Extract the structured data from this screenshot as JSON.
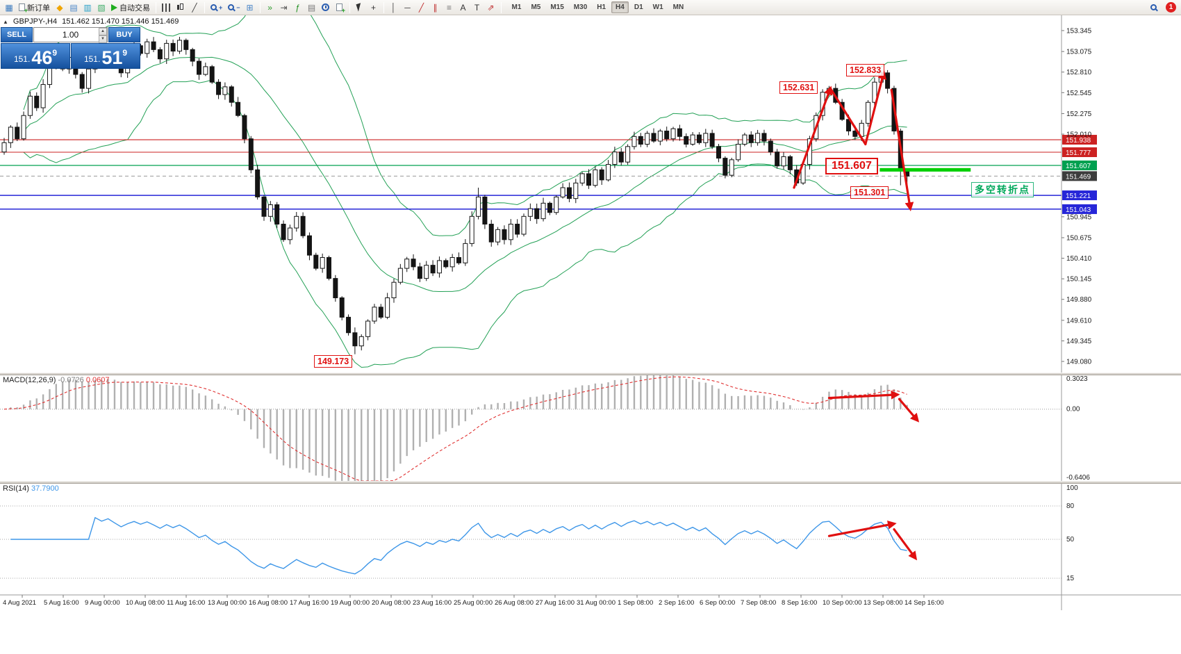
{
  "toolbar": {
    "new_order_label": "新订单",
    "auto_trading_label": "自动交易",
    "notification_count": "1",
    "active_timeframe": "H4",
    "timeframes": [
      "M1",
      "M5",
      "M15",
      "M30",
      "H1",
      "H4",
      "D1",
      "W1",
      "MN"
    ],
    "items": [
      {
        "name": "new-chart-button",
        "type": "glyph",
        "char": "▦",
        "color": "#3a7abf"
      },
      {
        "name": "new-order-button",
        "type": "labeled",
        "icon": "doc",
        "label": "新订单"
      },
      {
        "name": "mql5-community-button",
        "type": "glyph",
        "char": "◆",
        "color": "#f0a500"
      },
      {
        "name": "charts-window-button",
        "type": "glyph",
        "char": "▤",
        "color": "#4a86c8"
      },
      {
        "name": "data-window-button",
        "type": "glyph",
        "char": "▥",
        "color": "#27a0c8"
      },
      {
        "name": "strategy-tester-button",
        "type": "glyph",
        "char": "▧",
        "color": "#3fae6a"
      },
      {
        "name": "auto-trading-button",
        "type": "labeled",
        "icon": "play",
        "label": "自动交易"
      },
      {
        "type": "divider"
      },
      {
        "name": "bar-chart-type-button",
        "type": "css",
        "cls": "i-bars"
      },
      {
        "name": "candlestick-type-button",
        "type": "css",
        "cls": "i-candles"
      },
      {
        "name": "line-chart-type-button",
        "type": "glyph",
        "char": "╱",
        "color": "#444444"
      },
      {
        "type": "divider"
      },
      {
        "name": "zoom-in-button",
        "type": "zoom",
        "sign": "+"
      },
      {
        "name": "zoom-out-button",
        "type": "zoom",
        "sign": "−"
      },
      {
        "name": "tile-windows-button",
        "type": "glyph",
        "char": "⊞",
        "color": "#4a86c8"
      },
      {
        "type": "divider"
      },
      {
        "name": "auto-scroll-button",
        "type": "glyph",
        "char": "»",
        "color": "#2c9c2c"
      },
      {
        "name": "chart-shift-button",
        "type": "glyph",
        "char": "⇥",
        "color": "#555555"
      },
      {
        "name": "indicators-button",
        "type": "glyph",
        "char": "ƒ",
        "color": "#1f8f1f"
      },
      {
        "name": "periods-button",
        "type": "glyph",
        "char": "▤",
        "color": "#777777"
      },
      {
        "name": "alarm-button",
        "type": "css",
        "cls": "i-clock"
      },
      {
        "name": "news-button",
        "type": "css",
        "cls": "i-doc"
      },
      {
        "type": "divider"
      },
      {
        "name": "cursor-button",
        "type": "css",
        "cls": "i-cursor"
      },
      {
        "name": "crosshair-button",
        "type": "glyph",
        "char": "+",
        "color": "#333333"
      },
      {
        "type": "divider"
      },
      {
        "name": "vertical-line-button",
        "type": "glyph",
        "char": "│",
        "color": "#444444"
      },
      {
        "name": "horizontal-line-button",
        "type": "glyph",
        "char": "─",
        "color": "#444444"
      },
      {
        "name": "trendline-button",
        "type": "glyph",
        "char": "╱",
        "color": "#c03030"
      },
      {
        "name": "channel-button",
        "type": "glyph",
        "char": "∥",
        "color": "#c03030"
      },
      {
        "name": "fibonacci-button",
        "type": "glyph",
        "char": "≡",
        "color": "#777777"
      },
      {
        "name": "text-button",
        "type": "glyph",
        "char": "A",
        "color": "#333333"
      },
      {
        "name": "label-button",
        "type": "glyph",
        "char": "T",
        "color": "#333333"
      },
      {
        "name": "shapes-button",
        "type": "glyph",
        "char": "⇗",
        "color": "#c03030"
      },
      {
        "type": "divider"
      }
    ]
  },
  "chart": {
    "symbol_period": "GBPJPY-,H4",
    "ohlc_text": "151.462 151.470 151.446 151.469",
    "collapse_icon": "▲"
  },
  "trade_panel": {
    "sell_label": "SELL",
    "buy_label": "BUY",
    "volume": "1.00",
    "bid_prefix": "151.",
    "bid_big": "46",
    "bid_pip": "9",
    "ask_prefix": "151.",
    "ask_big": "51",
    "ask_pip": "9"
  },
  "macd": {
    "name": "MACD(12,26,9)",
    "value_main": "-0.0726",
    "value_signal": "0.0607"
  },
  "rsi": {
    "name": "RSI(14)",
    "value": "37.7900"
  },
  "annotations": {
    "peak1": "152.631",
    "peak2": "152.833",
    "support_label": "151.607",
    "low_label": "151.301",
    "bottom_low": "149.173",
    "turning_point": "多空转折点"
  },
  "chart_data": {
    "type": "candlestick+indicators",
    "symbol": "GBPJPY-",
    "timeframe": "H4",
    "closes": [
      151.9,
      152.1,
      151.95,
      152.25,
      152.5,
      152.35,
      152.65,
      152.9,
      153.05,
      152.85,
      153.0,
      152.78,
      152.6,
      152.85,
      153.05,
      152.92,
      153.1,
      152.95,
      152.8,
      153.0,
      153.15,
      153.05,
      153.2,
      153.1,
      152.98,
      153.18,
      153.08,
      153.22,
      153.1,
      152.95,
      152.78,
      152.88,
      152.68,
      152.52,
      152.62,
      152.42,
      152.25,
      151.95,
      151.55,
      151.2,
      150.95,
      151.1,
      150.85,
      150.65,
      150.8,
      150.95,
      150.7,
      150.45,
      150.28,
      150.42,
      150.15,
      149.9,
      149.65,
      149.45,
      149.28,
      149.4,
      149.6,
      149.78,
      149.65,
      149.9,
      150.1,
      150.28,
      150.4,
      150.3,
      150.15,
      150.32,
      150.22,
      150.38,
      150.3,
      150.42,
      150.35,
      150.6,
      150.95,
      151.2,
      150.85,
      150.62,
      150.78,
      150.65,
      150.85,
      150.72,
      150.95,
      151.05,
      150.92,
      151.12,
      151.0,
      151.2,
      151.32,
      151.18,
      151.38,
      151.5,
      151.35,
      151.55,
      151.42,
      151.62,
      151.78,
      151.65,
      151.85,
      151.98,
      151.88,
      152.02,
      151.92,
      152.05,
      151.95,
      152.08,
      151.98,
      151.88,
      152.0,
      151.9,
      152.02,
      151.85,
      151.7,
      151.48,
      151.68,
      151.88,
      152.0,
      151.9,
      152.02,
      151.92,
      151.78,
      151.6,
      151.72,
      151.55,
      151.38,
      151.62,
      151.95,
      152.25,
      152.55,
      152.6,
      152.42,
      152.2,
      152.05,
      151.98,
      152.15,
      152.42,
      152.68,
      152.8,
      152.6,
      152.05,
      151.55,
      151.469
    ],
    "wick_overrides": {
      "54": {
        "low": 149.173
      },
      "73": {
        "high": 151.32
      },
      "127": {
        "high": 152.631
      },
      "131": {
        "low": 151.935
      },
      "135": {
        "high": 152.833
      },
      "138": {
        "low": 151.35
      },
      "139": {
        "low": 151.301
      }
    },
    "bollinger": {
      "period": 20,
      "deviation": 2
    },
    "macd": {
      "fast": 12,
      "slow": 26,
      "signal": 9,
      "scale_max": 0.3023,
      "scale_min": -0.6406,
      "axis": [
        {
          "label": "0.3023",
          "v": 0.3023
        },
        {
          "label": "0.00",
          "v": 0
        },
        {
          "label": "-0.6406",
          "v": -0.6406
        }
      ]
    },
    "rsi": {
      "period": 14,
      "levels": [
        80,
        50,
        15
      ],
      "axis": [
        {
          "label": "100",
          "v": 100
        },
        {
          "label": "80",
          "v": 80
        },
        {
          "label": "50",
          "v": 50
        },
        {
          "label": "15",
          "v": 15
        }
      ]
    },
    "levels": [
      {
        "label": "151.938",
        "price": 151.938,
        "line_color": "#cc2222",
        "badge_bg": "#cc2222",
        "style": "solid",
        "width": 1.1
      },
      {
        "label": "151.777",
        "price": 151.777,
        "line_color": "#cc2222",
        "badge_bg": "#cc2222",
        "style": "solid",
        "width": 1.1
      },
      {
        "label": "151.607",
        "price": 151.607,
        "line_color": "#00a050",
        "badge_bg": "#00a050",
        "style": "solid",
        "width": 1.2
      },
      {
        "label": "151.469",
        "price": 151.469,
        "line_color": "#9a9a9a",
        "badge_bg": "#3c3c3c",
        "style": "dashed",
        "width": 1
      },
      {
        "label": "151.221",
        "price": 151.221,
        "line_color": "#2626d8",
        "badge_bg": "#2626d8",
        "style": "solid",
        "width": 1.5
      },
      {
        "label": "151.043",
        "price": 151.043,
        "line_color": "#2626d8",
        "badge_bg": "#2626d8",
        "style": "solid",
        "width": 1.5
      }
    ],
    "price_ticks": [
      "153.345",
      "153.075",
      "152.810",
      "152.545",
      "152.275",
      "152.010",
      "150.945",
      "150.675",
      "150.410",
      "150.145",
      "149.880",
      "149.610",
      "149.345",
      "149.080"
    ],
    "time_labels": [
      "4 Aug 2021",
      "5 Aug 16:00",
      "9 Aug 00:00",
      "10 Aug 08:00",
      "11 Aug 16:00",
      "13 Aug 00:00",
      "16 Aug 08:00",
      "17 Aug 16:00",
      "19 Aug 00:00",
      "20 Aug 08:00",
      "23 Aug 16:00",
      "25 Aug 00:00",
      "26 Aug 08:00",
      "27 Aug 16:00",
      "31 Aug 00:00",
      "1 Sep 08:00",
      "2 Sep 16:00",
      "6 Sep 00:00",
      "7 Sep 08:00",
      "8 Sep 16:00",
      "10 Sep 00:00",
      "13 Sep 08:00",
      "14 Sep 16:00"
    ],
    "support_segment": {
      "from_idx": 134.8,
      "to_idx": 148.8,
      "price": 151.55,
      "width": 5,
      "color": "#00cf00"
    },
    "main_arrows": [
      {
        "from": [
          121.6,
          151.32
        ],
        "to": [
          127.2,
          152.6
        ],
        "head": true
      },
      {
        "from": [
          127.2,
          152.6
        ],
        "to": [
          132.6,
          151.88
        ],
        "head": false
      },
      {
        "from": [
          132.6,
          151.88
        ],
        "to": [
          135.4,
          152.8
        ],
        "head": true
      },
      {
        "from": [
          136.6,
          152.58
        ],
        "to": [
          139.5,
          151.05
        ],
        "head": true
      }
    ],
    "macd_arrows": [
      {
        "from": [
          127,
          0.1
        ],
        "to": [
          137.5,
          0.13
        ],
        "head": true
      },
      {
        "from": [
          137.8,
          0.09
        ],
        "to": [
          140.6,
          -0.1
        ],
        "head": true
      }
    ],
    "rsi_arrows": [
      {
        "from": [
          127,
          53
        ],
        "to": [
          137,
          64
        ],
        "head": true
      },
      {
        "from": [
          137,
          59
        ],
        "to": [
          140.3,
          33
        ],
        "head": true
      }
    ],
    "colors": {
      "up_candle": "#ffffff",
      "down_candle": "#141414",
      "outline": "#141414",
      "bollinger": "#22a055",
      "macd_hist": "#b0b0b0",
      "macd_signal": "#e03131",
      "rsi_line": "#3d96e8",
      "annotation_red": "#e01010"
    }
  }
}
